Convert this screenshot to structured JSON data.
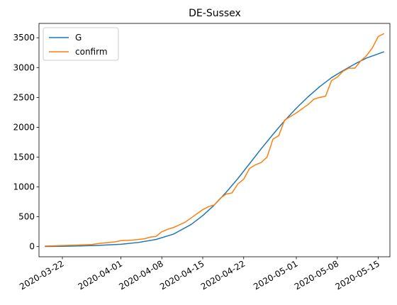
{
  "chart_data": {
    "type": "line",
    "title": "DE-Sussex",
    "xlabel": "",
    "ylabel": "",
    "x_axis": "date",
    "xlim": [
      "2020-03-18",
      "2020-05-17"
    ],
    "ylim": [
      -170,
      3740
    ],
    "x_ticks": [
      "2020-03-22",
      "2020-04-01",
      "2020-04-08",
      "2020-04-15",
      "2020-04-22",
      "2020-05-01",
      "2020-05-08",
      "2020-05-15"
    ],
    "y_ticks": [
      0,
      500,
      1000,
      1500,
      2000,
      2500,
      3000,
      3500
    ],
    "legend": {
      "placement": "top-left",
      "entries": [
        "G",
        "confirm"
      ]
    },
    "grid": false,
    "series": [
      {
        "name": "G",
        "color": "#1f77b4",
        "points": [
          [
            "2020-03-19",
            3
          ],
          [
            "2020-03-22",
            6
          ],
          [
            "2020-03-25",
            11
          ],
          [
            "2020-03-28",
            20
          ],
          [
            "2020-04-01",
            40
          ],
          [
            "2020-04-04",
            70
          ],
          [
            "2020-04-07",
            120
          ],
          [
            "2020-04-10",
            210
          ],
          [
            "2020-04-13",
            370
          ],
          [
            "2020-04-15",
            520
          ],
          [
            "2020-04-17",
            700
          ],
          [
            "2020-04-19",
            910
          ],
          [
            "2020-04-21",
            1140
          ],
          [
            "2020-04-23",
            1390
          ],
          [
            "2020-04-25",
            1640
          ],
          [
            "2020-04-27",
            1880
          ],
          [
            "2020-04-29",
            2110
          ],
          [
            "2020-05-01",
            2320
          ],
          [
            "2020-05-03",
            2510
          ],
          [
            "2020-05-05",
            2680
          ],
          [
            "2020-05-07",
            2830
          ],
          [
            "2020-05-09",
            2950
          ],
          [
            "2020-05-11",
            3060
          ],
          [
            "2020-05-13",
            3160
          ],
          [
            "2020-05-15",
            3230
          ],
          [
            "2020-05-16",
            3265
          ]
        ]
      },
      {
        "name": "confirm",
        "color": "#ff7f0e",
        "points": [
          [
            "2020-03-19",
            10
          ],
          [
            "2020-03-21",
            15
          ],
          [
            "2020-03-24",
            25
          ],
          [
            "2020-03-27",
            35
          ],
          [
            "2020-03-28",
            50
          ],
          [
            "2020-03-29",
            60
          ],
          [
            "2020-03-31",
            80
          ],
          [
            "2020-04-01",
            100
          ],
          [
            "2020-04-03",
            110
          ],
          [
            "2020-04-05",
            130
          ],
          [
            "2020-04-06",
            160
          ],
          [
            "2020-04-07",
            170
          ],
          [
            "2020-04-08",
            250
          ],
          [
            "2020-04-09",
            290
          ],
          [
            "2020-04-10",
            320
          ],
          [
            "2020-04-12",
            410
          ],
          [
            "2020-04-13",
            480
          ],
          [
            "2020-04-15",
            620
          ],
          [
            "2020-04-16",
            670
          ],
          [
            "2020-04-17",
            700
          ],
          [
            "2020-04-18",
            810
          ],
          [
            "2020-04-19",
            880
          ],
          [
            "2020-04-20",
            900
          ],
          [
            "2020-04-21",
            1050
          ],
          [
            "2020-04-22",
            1130
          ],
          [
            "2020-04-23",
            1310
          ],
          [
            "2020-04-24",
            1370
          ],
          [
            "2020-04-25",
            1410
          ],
          [
            "2020-04-26",
            1500
          ],
          [
            "2020-04-27",
            1800
          ],
          [
            "2020-04-28",
            1860
          ],
          [
            "2020-04-29",
            2120
          ],
          [
            "2020-04-30",
            2180
          ],
          [
            "2020-05-01",
            2240
          ],
          [
            "2020-05-02",
            2310
          ],
          [
            "2020-05-03",
            2380
          ],
          [
            "2020-05-04",
            2470
          ],
          [
            "2020-05-05",
            2500
          ],
          [
            "2020-05-06",
            2520
          ],
          [
            "2020-05-07",
            2780
          ],
          [
            "2020-05-08",
            2840
          ],
          [
            "2020-05-09",
            2940
          ],
          [
            "2020-05-10",
            2990
          ],
          [
            "2020-05-11",
            2990
          ],
          [
            "2020-05-12",
            3110
          ],
          [
            "2020-05-13",
            3200
          ],
          [
            "2020-05-14",
            3330
          ],
          [
            "2020-05-15",
            3520
          ],
          [
            "2020-05-16",
            3570
          ]
        ]
      }
    ]
  }
}
